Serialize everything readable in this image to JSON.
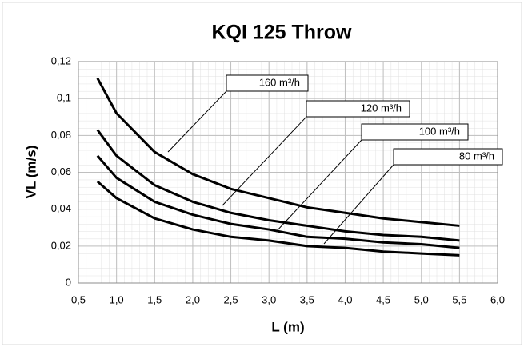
{
  "chart_data": {
    "type": "line",
    "title": "KQI 125 Throw",
    "x_label": "L (m)",
    "y_label": "VL (m/s)",
    "x": [
      0.75,
      1,
      1.5,
      2,
      2.5,
      3,
      3.5,
      4,
      4.5,
      5,
      5.5
    ],
    "series": [
      {
        "name": "160 m³/h",
        "color": "#000000",
        "values": [
          0.111,
          0.092,
          0.071,
          0.059,
          0.051,
          0.046,
          0.041,
          0.038,
          0.035,
          0.033,
          0.031
        ]
      },
      {
        "name": "120 m³/h",
        "color": "#000000",
        "values": [
          0.083,
          0.069,
          0.053,
          0.044,
          0.038,
          0.034,
          0.031,
          0.028,
          0.026,
          0.025,
          0.023
        ]
      },
      {
        "name": "100 m³/h",
        "color": "#000000",
        "values": [
          0.069,
          0.057,
          0.044,
          0.037,
          0.032,
          0.029,
          0.025,
          0.024,
          0.022,
          0.021,
          0.019
        ]
      },
      {
        "name": "80 m³/h",
        "color": "#000000",
        "values": [
          0.055,
          0.046,
          0.035,
          0.029,
          0.025,
          0.023,
          0.02,
          0.019,
          0.017,
          0.016,
          0.015
        ]
      }
    ],
    "xlim": [
      0.5,
      6
    ],
    "ylim": [
      0,
      0.12
    ],
    "xticks": [
      {
        "value": 0.5,
        "label": "0,5"
      },
      {
        "value": 1,
        "label": "1,0"
      },
      {
        "value": 1.5,
        "label": "1,5"
      },
      {
        "value": 2,
        "label": "2,0"
      },
      {
        "value": 2.5,
        "label": "2,5"
      },
      {
        "value": 3,
        "label": "3,0"
      },
      {
        "value": 3.5,
        "label": "3,5"
      },
      {
        "value": 4,
        "label": "4,0"
      },
      {
        "value": 4.5,
        "label": "4,5"
      },
      {
        "value": 5,
        "label": "5,0"
      },
      {
        "value": 5.5,
        "label": "5,5"
      },
      {
        "value": 6,
        "label": "6,0"
      }
    ],
    "yticks": [
      0,
      {
        "value": 0.02,
        "label": "0,02"
      },
      {
        "value": 0.04,
        "label": "0,04"
      },
      {
        "value": 0.06,
        "label": "0,06"
      },
      {
        "value": 0.08,
        "label": "0,08"
      },
      {
        "value": 0.1,
        "label": "0,1"
      },
      {
        "value": 0.12,
        "label": "0,12"
      }
    ],
    "grid": true
  }
}
